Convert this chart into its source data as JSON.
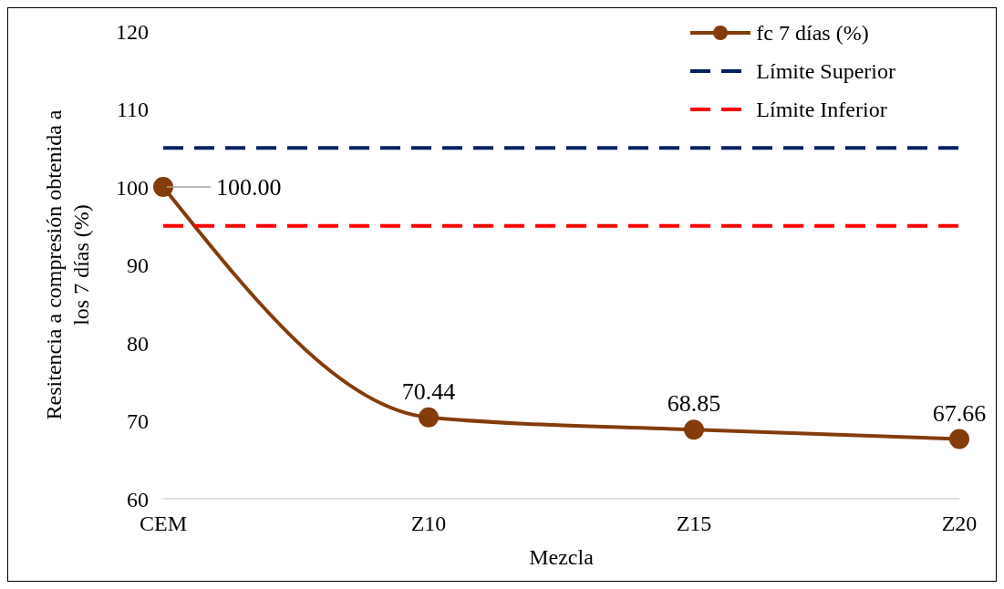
{
  "chart_data": {
    "type": "line",
    "xlabel": "Mezcla",
    "ylabel": "Resitencia a compresión obtenida a los 7 días (%)",
    "categories": [
      "CEM",
      "Z10",
      "Z15",
      "Z20"
    ],
    "series": [
      {
        "name": "fc 7 días (%)",
        "color": "#843c0c",
        "values": [
          100,
          70.44,
          68.85,
          67.66
        ],
        "value_labels": [
          "100.00",
          "70.44",
          "68.85",
          "67.66"
        ],
        "marker": "circle",
        "line_style": "solid"
      },
      {
        "name": "Límite Superior",
        "color": "#002060",
        "values": [
          105,
          105,
          105,
          105
        ],
        "marker": "none",
        "line_style": "dashed"
      },
      {
        "name": "Límite Inferior",
        "color": "#ff0000",
        "values": [
          95,
          95,
          95,
          95
        ],
        "marker": "none",
        "line_style": "dashed"
      }
    ],
    "ylim": [
      60,
      120
    ],
    "yticks": [
      60,
      70,
      80,
      90,
      100,
      110,
      120
    ],
    "grid": false,
    "legend": "top right"
  }
}
